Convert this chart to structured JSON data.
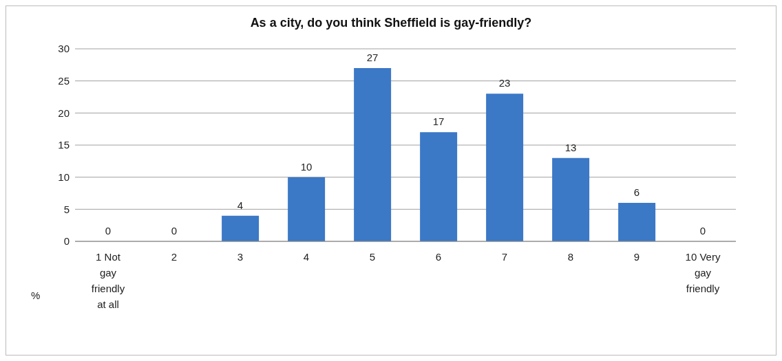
{
  "chart_data": {
    "type": "bar",
    "title": "As a city, do you think Sheffield is gay-friendly?",
    "ylabel": "%",
    "categories": [
      "1 Not gay friendly at all",
      "2",
      "3",
      "4",
      "5",
      "6",
      "7",
      "8",
      "9",
      "10 Very gay friendly"
    ],
    "values": [
      0,
      0,
      4,
      10,
      27,
      17,
      23,
      13,
      6,
      0
    ],
    "color": "#3b78c6",
    "ylim": [
      0,
      30
    ],
    "yticks": [
      0,
      5,
      10,
      15,
      20,
      25,
      30
    ],
    "grid": "y",
    "data_labels": true,
    "legend": false
  }
}
